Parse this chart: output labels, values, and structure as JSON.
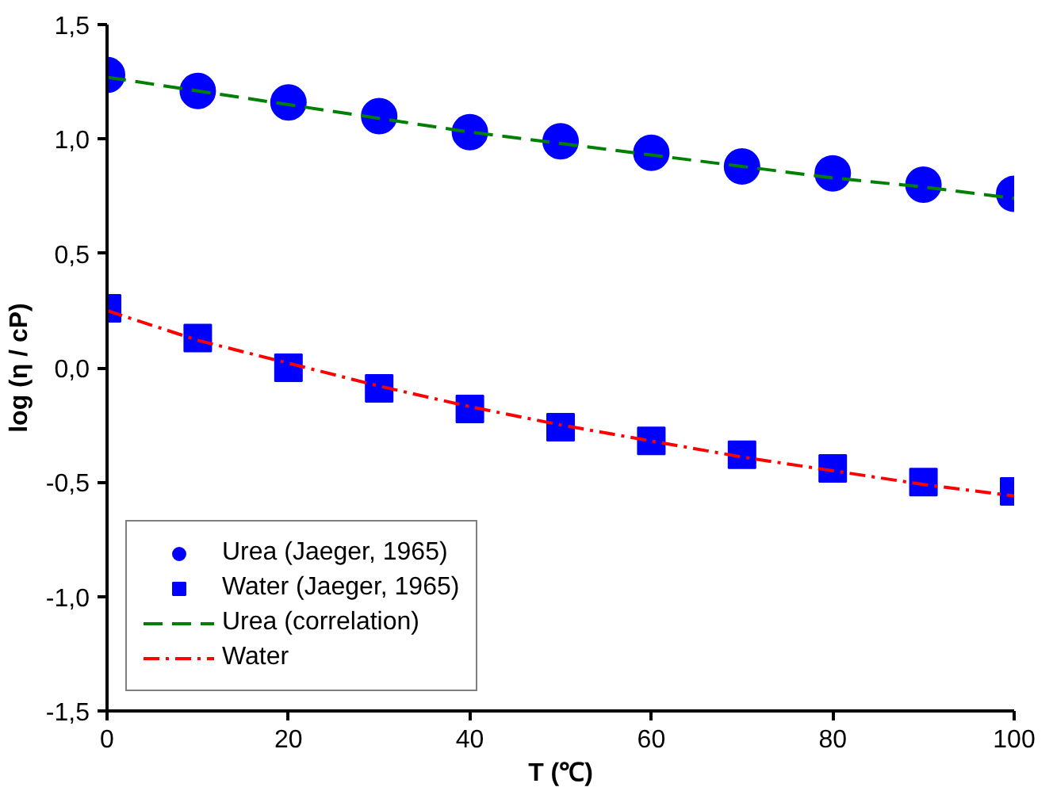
{
  "chart_data": {
    "type": "scatter",
    "xlabel": "T (℃)",
    "ylabel": "log (η / cP)",
    "xlim": [
      0,
      100
    ],
    "ylim": [
      -1.5,
      1.5
    ],
    "xticks": [
      0,
      20,
      40,
      60,
      80,
      100
    ],
    "yticks": [
      {
        "value": -1.5,
        "label": "-1,5"
      },
      {
        "value": -1.0,
        "label": "-1,0"
      },
      {
        "value": -0.5,
        "label": "-0,5"
      },
      {
        "value": 0,
        "label": "0,0"
      },
      {
        "value": 0.5,
        "label": "0,5"
      },
      {
        "value": 1.0,
        "label": "1,0"
      },
      {
        "value": 1.5,
        "label": "1,5"
      }
    ],
    "x": [
      0,
      10,
      20,
      30,
      40,
      50,
      60,
      70,
      80,
      90,
      100
    ],
    "grid": false,
    "legend": "bottom left",
    "series": [
      {
        "name": "Urea (Jaeger, 1965)",
        "marker": "circle",
        "color": "#0000ff",
        "values": [
          1.28,
          1.21,
          1.16,
          1.1,
          1.03,
          0.99,
          0.94,
          0.88,
          0.85,
          0.8,
          0.76
        ]
      },
      {
        "name": "Water (Jaeger, 1965)",
        "marker": "square",
        "color": "#0000ff",
        "values": [
          0.26,
          0.13,
          0.0,
          -0.09,
          -0.18,
          -0.26,
          -0.32,
          -0.38,
          -0.44,
          -0.5,
          -0.54
        ]
      },
      {
        "name": "Urea (correlation)",
        "type": "line",
        "line_style": "dashed",
        "color": "#008000",
        "values": [
          1.27,
          1.21,
          1.15,
          1.09,
          1.03,
          0.98,
          0.93,
          0.88,
          0.83,
          0.79,
          0.74
        ]
      },
      {
        "name": "Water",
        "type": "line",
        "line_style": "dashdot",
        "color": "#ff0000",
        "values": [
          0.25,
          0.12,
          0.02,
          -0.08,
          -0.17,
          -0.25,
          -0.32,
          -0.39,
          -0.45,
          -0.51,
          -0.56
        ]
      }
    ]
  }
}
